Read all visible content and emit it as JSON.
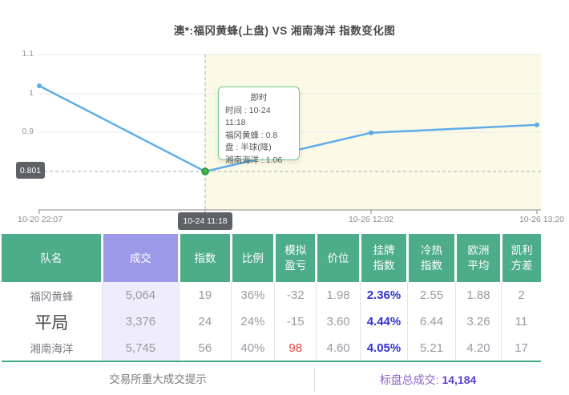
{
  "chart_data": {
    "type": "line",
    "title": "澳*:福冈黄蜂(上盘) VS 湘南海洋 指数变化图",
    "series_name": "福冈黄蜂 指数",
    "x_labels": [
      "10-20 22:07",
      "10-24 11:18",
      "10-26 12:02",
      "10-26 13:20"
    ],
    "values": [
      1.02,
      0.801,
      0.9,
      0.92
    ],
    "y_ticks": [
      "1.1",
      "1",
      "0.9"
    ],
    "ylim": [
      0.7,
      1.13
    ],
    "grid": true,
    "legend": "none",
    "highlight_index": 1,
    "current_value_label": "0.801",
    "selected_x_label": "10-24 11:18",
    "tooltip": {
      "title": "即时",
      "lines": [
        "时间 : 10-24 11:18",
        "福冈黄蜂 : 0.8",
        "盘 : 半球(降)",
        "湘南海洋 : 1.06"
      ]
    }
  },
  "table": {
    "columns": [
      {
        "l1": "队名"
      },
      {
        "l1": "成交"
      },
      {
        "l1": "指数"
      },
      {
        "l1": "比例"
      },
      {
        "l1": "模拟",
        "l2": "盈亏"
      },
      {
        "l1": "价位"
      },
      {
        "l1": "挂牌",
        "l2": "指数"
      },
      {
        "l1": "冷热",
        "l2": "指数"
      },
      {
        "l1": "欧洲",
        "l2": "平均"
      },
      {
        "l1": "凯利",
        "l2": "方差"
      }
    ],
    "rows": [
      {
        "name": "福冈黄蜂",
        "volume": "5,064",
        "index": "19",
        "ratio": "36%",
        "pnl": "-32",
        "price": "1.98",
        "listed": "2.36%",
        "hot": "2.55",
        "euro": "1.88",
        "kelly": "2"
      },
      {
        "name": "平局",
        "volume": "3,376",
        "index": "24",
        "ratio": "24%",
        "pnl": "-15",
        "price": "3.60",
        "listed": "4.44%",
        "hot": "6.44",
        "euro": "3.26",
        "kelly": "11"
      },
      {
        "name": "湘南海洋",
        "volume": "5,745",
        "index": "56",
        "ratio": "40%",
        "pnl": "98",
        "price": "4.60",
        "listed": "4.05%",
        "hot": "5.21",
        "euro": "4.20",
        "kelly": "17"
      }
    ]
  },
  "footer": {
    "notice": "交易所重大成交提示",
    "total_label": "标盘总成交:",
    "total_value": "14,184"
  },
  "colors": {
    "header_green": "#4dac8a",
    "volume_header_purple": "#9b99e8",
    "volume_column_bg": "#efecfb",
    "line_blue": "#5face8",
    "highlight_point_green": "#3fb54b",
    "band_yellow": "#fbfae6",
    "badge_gray": "#5e6166",
    "listed_index_blue": "#3434d0",
    "profit_red": "#e84040",
    "total_label_purple": "#8a65c8",
    "total_value_purple": "#5b3fd0"
  }
}
